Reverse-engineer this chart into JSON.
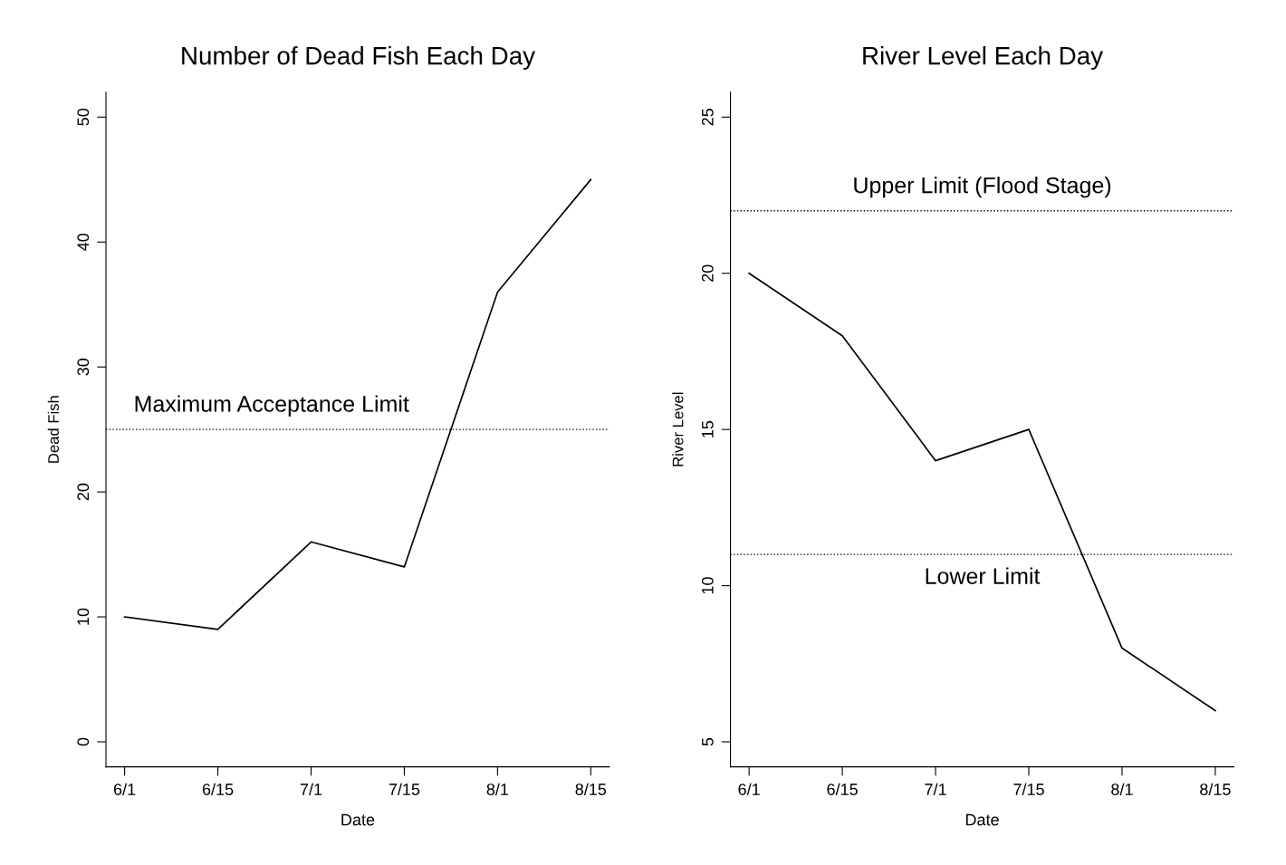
{
  "chart_data": [
    {
      "type": "line",
      "title": "Number of Dead Fish Each Day",
      "xlabel": "Date",
      "ylabel": "Dead Fish",
      "categories": [
        "6/1",
        "6/15",
        "7/1",
        "7/15",
        "8/1",
        "8/15"
      ],
      "series": [
        {
          "color": "#000000",
          "values": [
            10,
            9,
            16,
            14,
            36,
            45
          ]
        }
      ],
      "ylim": [
        -2,
        52
      ],
      "yticks": [
        0,
        10,
        20,
        30,
        40,
        50
      ],
      "grid": false,
      "line_style": "solid",
      "ref_lines": [
        {
          "axis": "y",
          "value": 25,
          "label": "Maximum Acceptance Limit",
          "color": "#000000",
          "line_style": "dotted"
        }
      ]
    },
    {
      "type": "line",
      "title": "River Level Each Day",
      "xlabel": "Date",
      "ylabel": "River Level",
      "categories": [
        "6/1",
        "6/15",
        "7/1",
        "7/15",
        "8/1",
        "8/15"
      ],
      "series": [
        {
          "color": "#000000",
          "values": [
            20,
            18,
            14,
            15,
            8,
            6
          ]
        }
      ],
      "ylim": [
        4.2,
        25.8
      ],
      "yticks": [
        5,
        10,
        15,
        20,
        25
      ],
      "grid": false,
      "line_style": "solid",
      "ref_lines": [
        {
          "axis": "y",
          "value": 22,
          "label": "Upper Limit (Flood Stage)",
          "color": "#000000",
          "line_style": "dotted"
        },
        {
          "axis": "y",
          "value": 11,
          "label": "Lower Limit",
          "color": "#000000",
          "line_style": "dotted"
        }
      ]
    }
  ]
}
